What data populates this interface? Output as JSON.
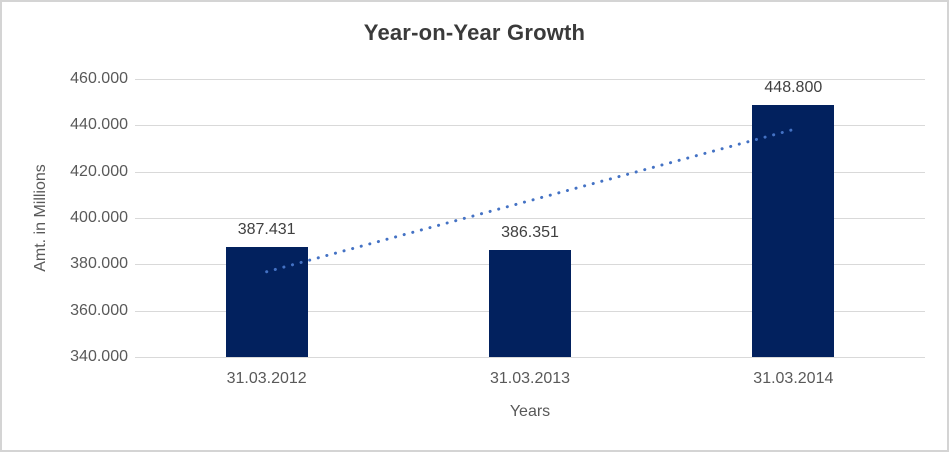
{
  "chart_data": {
    "type": "bar",
    "title": "Year-on-Year Growth",
    "xlabel": "Years",
    "ylabel": "Amt. in Millions",
    "categories": [
      "31.03.2012",
      "31.03.2013",
      "31.03.2014"
    ],
    "values": [
      387.431,
      386.351,
      448.8
    ],
    "data_labels": [
      "387.431",
      "386.351",
      "448.800"
    ],
    "y_ticks": [
      {
        "value": 340,
        "label": "340.000"
      },
      {
        "value": 360,
        "label": "360.000"
      },
      {
        "value": 380,
        "label": "380.000"
      },
      {
        "value": 400,
        "label": "400.000"
      },
      {
        "value": 420,
        "label": "420.000"
      },
      {
        "value": 440,
        "label": "440.000"
      },
      {
        "value": 460,
        "label": "460.000"
      }
    ],
    "ylim": [
      340,
      460
    ],
    "grid": true,
    "legend": "none",
    "colors": {
      "bar": "#02215e",
      "trendline": "#4472c4",
      "gridline": "#d9d9d9",
      "axis_text": "#595959",
      "title_text": "#3a3a3a",
      "data_label_text": "#404040"
    },
    "trendline": {
      "style": "dotted",
      "color": "#4472c4",
      "start_value": 376.8,
      "end_value": 438.2
    }
  }
}
